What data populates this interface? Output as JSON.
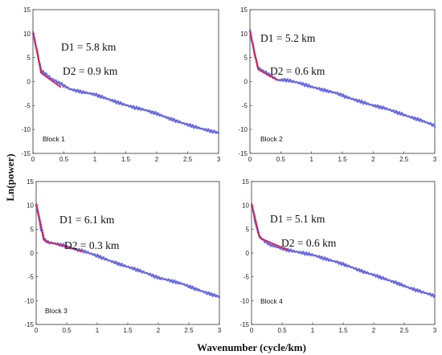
{
  "figure": {
    "ylabel": "Ln(power)",
    "xlabel": "Wavenumber (cycle/km)"
  },
  "chart_data": [
    {
      "type": "line",
      "xlim": [
        0,
        3
      ],
      "ylim": [
        -15,
        15
      ],
      "xticks": [
        "0",
        "0.5",
        "1",
        "1.5",
        "2",
        "2.5",
        "3"
      ],
      "yticks": [
        "15",
        "10",
        "5",
        "0",
        "-5",
        "-10",
        "-15"
      ],
      "block_label": "Block 1",
      "annotations": [
        "D1 = 5.8 km",
        "D2 = 0.9 km"
      ],
      "spectrum": {
        "x": [
          0,
          0.03,
          0.08,
          0.13,
          0.2,
          0.3,
          0.45,
          0.6,
          0.8,
          1.0,
          1.2,
          1.4,
          1.6,
          1.8,
          2.0,
          2.2,
          2.4,
          2.6,
          2.8,
          3.0
        ],
        "y": [
          10,
          8.5,
          5.5,
          2.2,
          1.6,
          0.6,
          -0.5,
          -1.6,
          -2.2,
          -2.7,
          -3.6,
          -4.5,
          -5.3,
          -5.9,
          -6.7,
          -7.7,
          -8.6,
          -9.4,
          -10.1,
          -10.7
        ]
      },
      "fit_deep": {
        "x": [
          0,
          0.13
        ],
        "y": [
          10.5,
          1.8
        ]
      },
      "fit_shallow": {
        "x": [
          0.13,
          0.45
        ],
        "y": [
          1.8,
          -1.2
        ]
      }
    },
    {
      "type": "line",
      "xlim": [
        0,
        3
      ],
      "ylim": [
        -15,
        15
      ],
      "xticks": [
        "0",
        "0.5",
        "1",
        "1.5",
        "2",
        "2.5",
        "3"
      ],
      "yticks": [
        "15",
        "10",
        "5",
        "0",
        "-5",
        "-10",
        "-15"
      ],
      "block_label": "Block 2",
      "annotations": [
        "D1 = 5.2 km",
        "D2 = 0.6 km"
      ],
      "spectrum": {
        "x": [
          0,
          0.03,
          0.08,
          0.13,
          0.2,
          0.3,
          0.45,
          0.6,
          0.8,
          1.0,
          1.2,
          1.4,
          1.6,
          1.8,
          2.0,
          2.2,
          2.4,
          2.6,
          2.8,
          3.0
        ],
        "y": [
          10.5,
          8.8,
          5.5,
          3.0,
          2.3,
          1.5,
          0.3,
          0.3,
          -0.3,
          -1.1,
          -1.8,
          -2.4,
          -3.4,
          -4.2,
          -5.0,
          -5.6,
          -6.5,
          -7.4,
          -8.2,
          -9.2
        ]
      },
      "fit_deep": {
        "x": [
          0,
          0.13
        ],
        "y": [
          10.5,
          2.5
        ]
      },
      "fit_shallow": {
        "x": [
          0.13,
          0.45
        ],
        "y": [
          2.5,
          0.3
        ]
      }
    },
    {
      "type": "line",
      "xlim": [
        0,
        3
      ],
      "ylim": [
        -15,
        15
      ],
      "xticks": [
        "0",
        "0.5",
        "1",
        "1.5",
        "2",
        "2.5",
        "3"
      ],
      "yticks": [
        "15",
        "10",
        "5",
        "0",
        "-5",
        "-10",
        "-15"
      ],
      "block_label": "Block 3",
      "annotations": [
        "D1 = 6.1 km",
        "D2 = 0.3 km"
      ],
      "spectrum": {
        "x": [
          0,
          0.03,
          0.08,
          0.13,
          0.2,
          0.3,
          0.45,
          0.6,
          0.8,
          1.0,
          1.2,
          1.4,
          1.6,
          1.8,
          2.0,
          2.2,
          2.4,
          2.6,
          2.8,
          3.0
        ],
        "y": [
          10,
          8.5,
          5.0,
          2.8,
          2.2,
          2.0,
          1.6,
          0.9,
          0.3,
          -0.6,
          -1.6,
          -2.5,
          -3.3,
          -4.2,
          -5.2,
          -5.8,
          -6.5,
          -7.5,
          -8.4,
          -9.2
        ]
      },
      "fit_deep": {
        "x": [
          0,
          0.13
        ],
        "y": [
          10.5,
          2.6
        ]
      },
      "fit_shallow": {
        "x": [
          0.13,
          0.75
        ],
        "y": [
          2.6,
          0.4
        ]
      }
    },
    {
      "type": "line",
      "xlim": [
        0,
        3
      ],
      "ylim": [
        -15,
        15
      ],
      "xticks": [
        "0",
        "0.5",
        "1",
        "1.5",
        "2",
        "2.5",
        "3"
      ],
      "yticks": [
        "15",
        "10",
        "5",
        "0",
        "-5",
        "-10",
        "-15"
      ],
      "block_label": "Block 4",
      "annotations": [
        "D1 = 5.1 km",
        "D2 = 0.6 km"
      ],
      "spectrum": {
        "x": [
          0,
          0.03,
          0.08,
          0.13,
          0.2,
          0.3,
          0.45,
          0.6,
          0.8,
          1.0,
          1.2,
          1.4,
          1.6,
          1.8,
          2.0,
          2.2,
          2.4,
          2.6,
          2.8,
          3.0
        ],
        "y": [
          10,
          8.5,
          5.5,
          3.5,
          2.6,
          1.8,
          1.1,
          0.6,
          0.1,
          -0.4,
          -1.2,
          -1.9,
          -2.8,
          -3.8,
          -4.6,
          -5.5,
          -6.4,
          -7.4,
          -8.2,
          -9.0
        ]
      },
      "fit_deep": {
        "x": [
          0,
          0.13
        ],
        "y": [
          10.5,
          3.2
        ]
      },
      "fit_shallow": {
        "x": [
          0.13,
          0.6
        ],
        "y": [
          3.2,
          0.6
        ]
      }
    }
  ]
}
